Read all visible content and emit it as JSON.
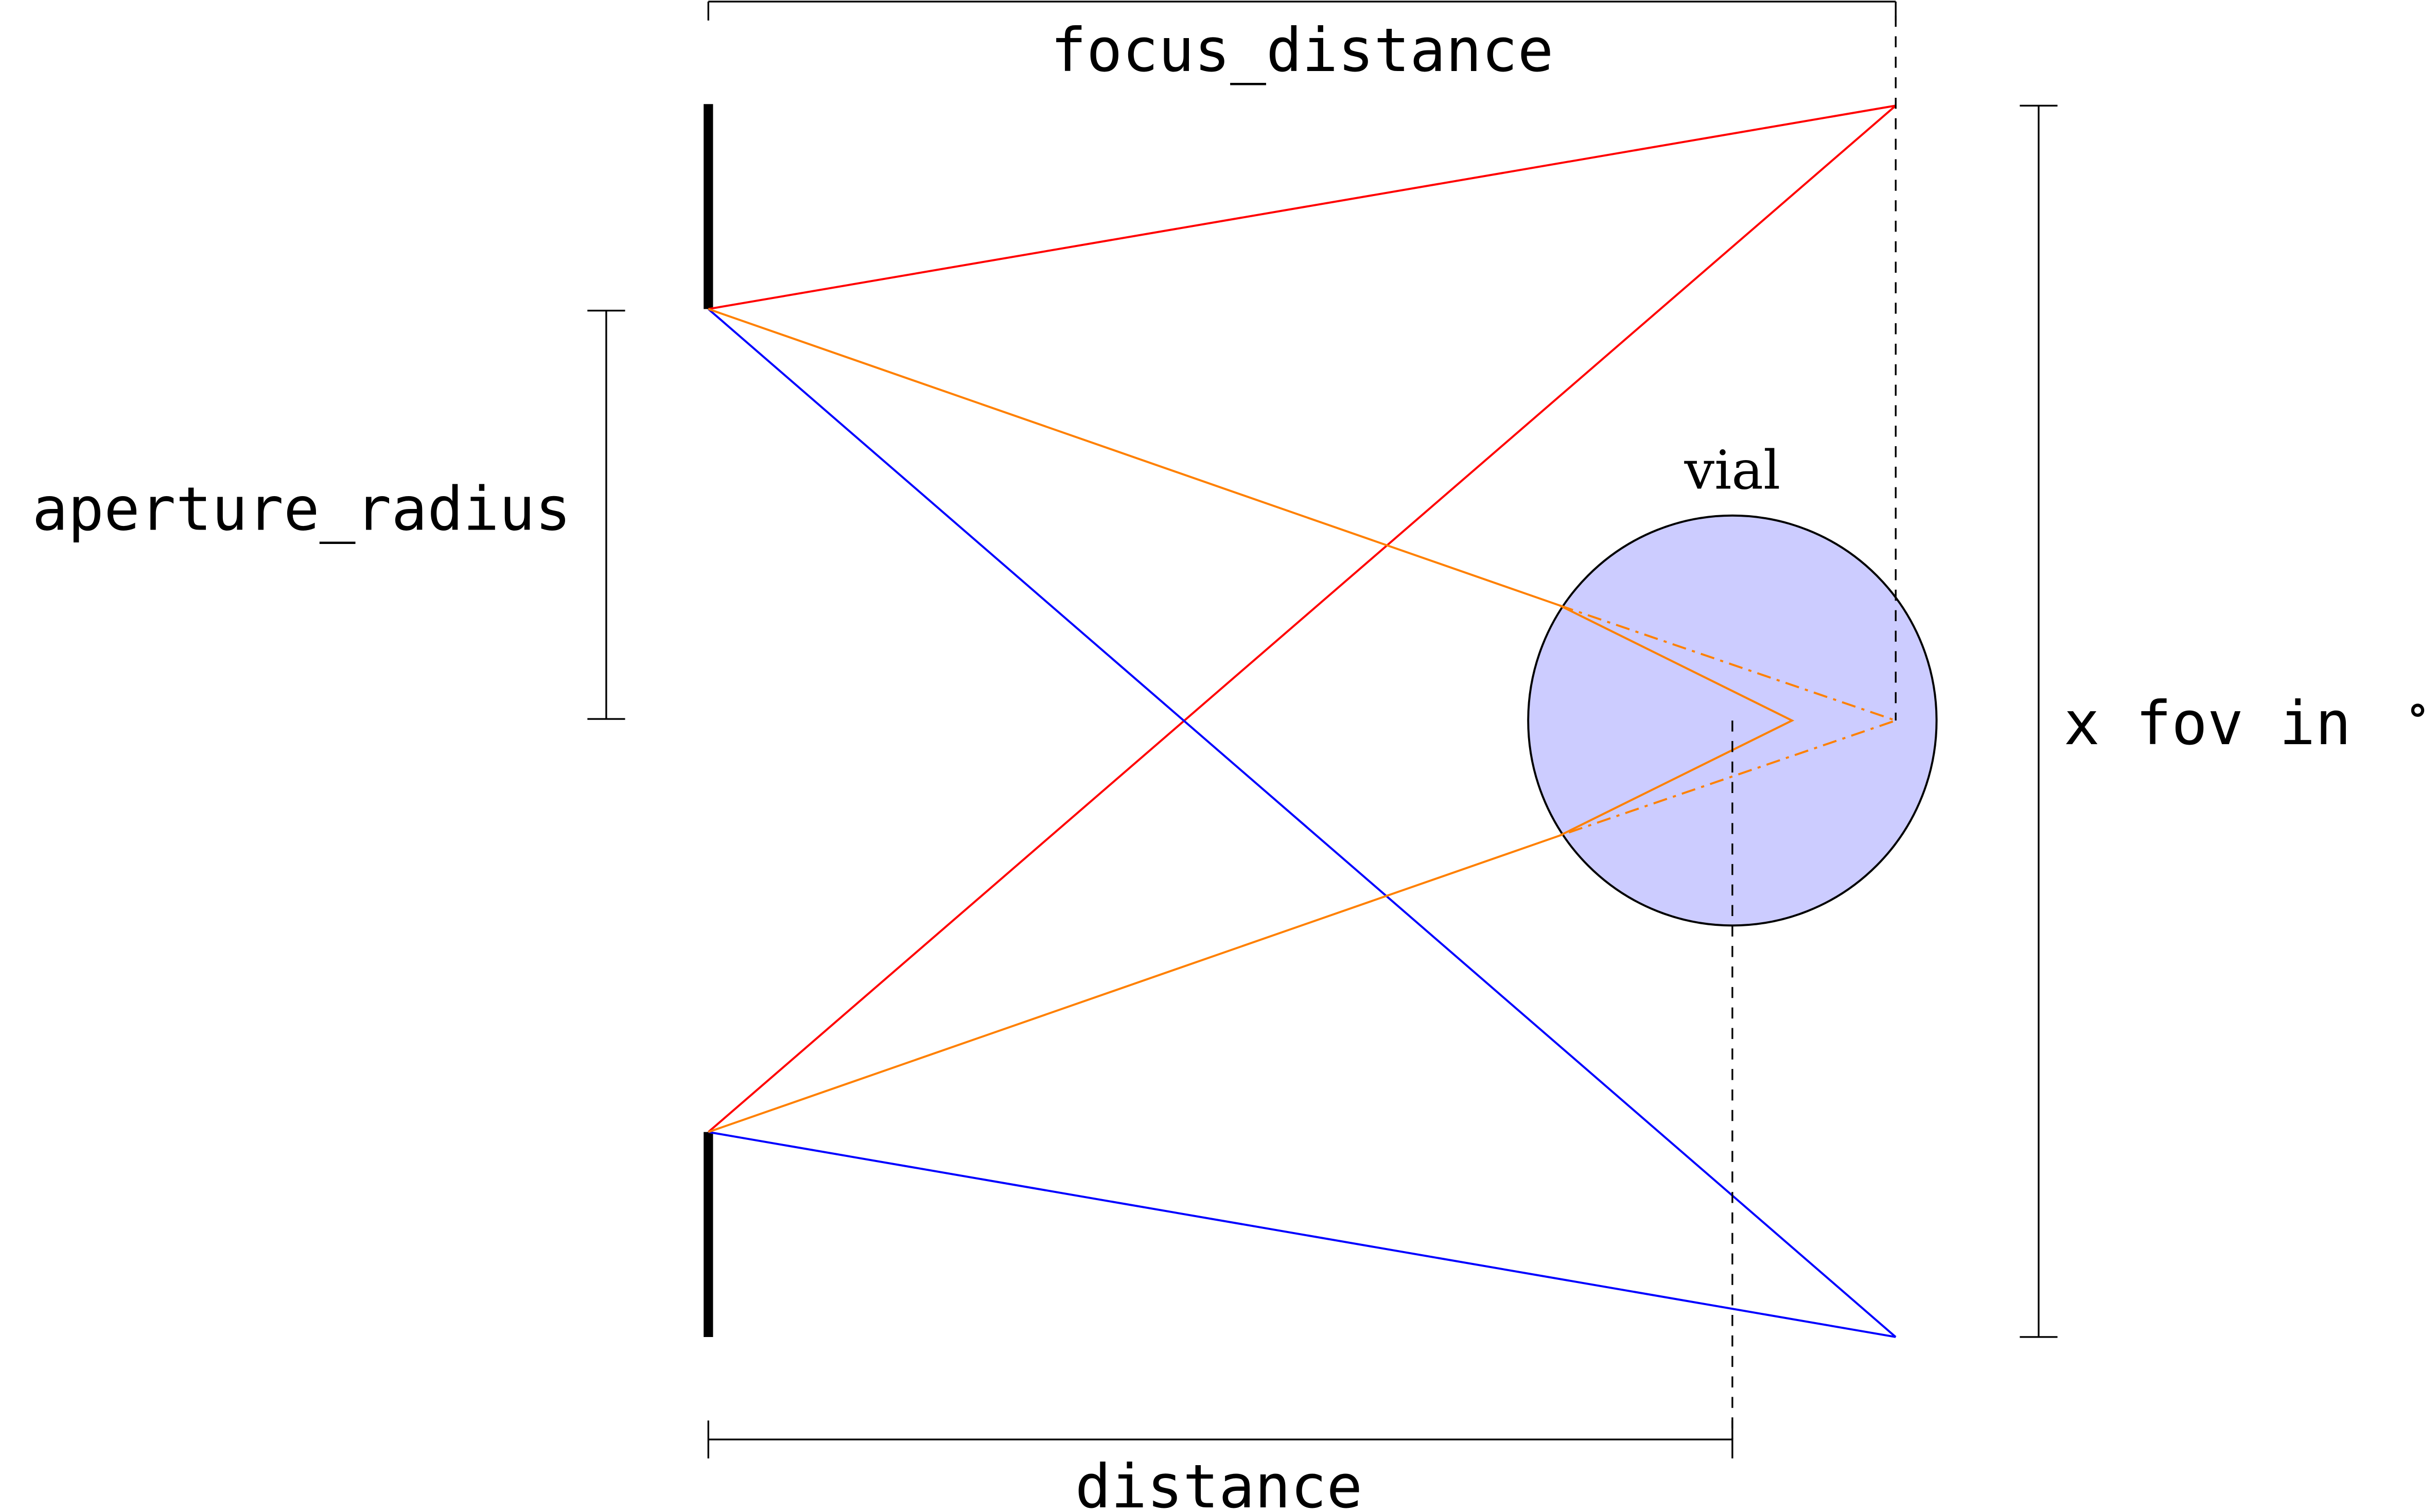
{
  "labels": {
    "focus_distance": "focus_distance",
    "aperture_radius": "aperture_radius",
    "fov": "x fov in",
    "degree": "∘",
    "distance": "distance",
    "vial": "vial"
  },
  "colors": {
    "red_ray": "#ff0000",
    "orange_ray": "#ff8000",
    "blue_ray": "#0000ff",
    "vial_fill": "#ccccff",
    "line": "#000000"
  }
}
